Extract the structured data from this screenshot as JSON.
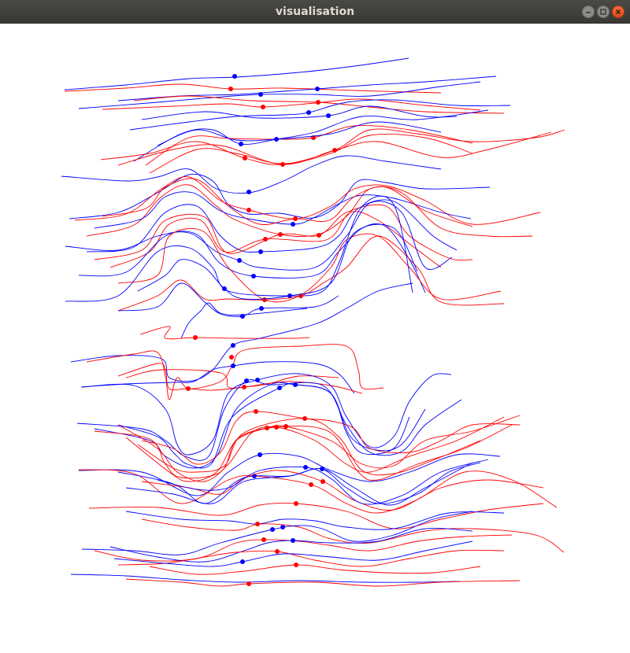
{
  "window": {
    "title": "visualisation",
    "controls": [
      "minimize-icon",
      "maximize-icon",
      "close-icon"
    ]
  },
  "colors": {
    "series_a": "#0000ff",
    "series_b": "#ff0000",
    "background": "#ffffff",
    "titlebar": "#3f3e3b",
    "title_text": "#dfdbd2",
    "close_button": "#e95420"
  }
}
